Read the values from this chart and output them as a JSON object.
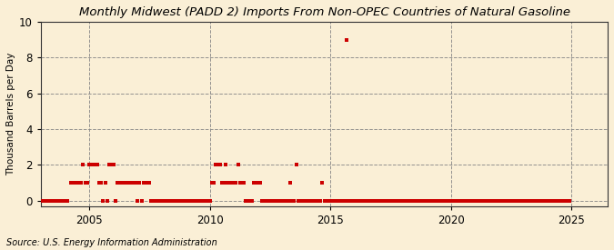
{
  "title": "Monthly Midwest (PADD 2) Imports From Non-OPEC Countries of Natural Gasoline",
  "ylabel": "Thousand Barrels per Day",
  "source": "Source: U.S. Energy Information Administration",
  "xlim": [
    2003.0,
    2026.5
  ],
  "ylim": [
    -0.3,
    10
  ],
  "yticks": [
    0,
    2,
    4,
    6,
    8,
    10
  ],
  "xticks": [
    2005,
    2010,
    2015,
    2020,
    2025
  ],
  "bg_color": "#faefd6",
  "marker_color": "#cc0000",
  "data": [
    [
      2003.0,
      0
    ],
    [
      2003.08,
      0
    ],
    [
      2003.17,
      0
    ],
    [
      2003.25,
      0
    ],
    [
      2003.33,
      0
    ],
    [
      2003.42,
      0
    ],
    [
      2003.5,
      0
    ],
    [
      2003.58,
      0
    ],
    [
      2003.67,
      0
    ],
    [
      2003.75,
      0
    ],
    [
      2003.83,
      0
    ],
    [
      2003.92,
      0
    ],
    [
      2004.0,
      0
    ],
    [
      2004.08,
      0
    ],
    [
      2004.25,
      1
    ],
    [
      2004.33,
      1
    ],
    [
      2004.42,
      1
    ],
    [
      2004.5,
      1
    ],
    [
      2004.58,
      1
    ],
    [
      2004.67,
      1
    ],
    [
      2004.75,
      2
    ],
    [
      2004.83,
      1
    ],
    [
      2004.92,
      1
    ],
    [
      2005.0,
      2
    ],
    [
      2005.08,
      2
    ],
    [
      2005.17,
      2
    ],
    [
      2005.25,
      2
    ],
    [
      2005.33,
      2
    ],
    [
      2005.42,
      1
    ],
    [
      2005.5,
      1
    ],
    [
      2005.58,
      0
    ],
    [
      2005.67,
      1
    ],
    [
      2005.75,
      0
    ],
    [
      2005.83,
      2
    ],
    [
      2005.92,
      2
    ],
    [
      2006.0,
      2
    ],
    [
      2006.08,
      0
    ],
    [
      2006.17,
      1
    ],
    [
      2006.25,
      1
    ],
    [
      2006.33,
      1
    ],
    [
      2006.42,
      1
    ],
    [
      2006.5,
      1
    ],
    [
      2006.58,
      1
    ],
    [
      2006.67,
      1
    ],
    [
      2006.75,
      1
    ],
    [
      2006.83,
      1
    ],
    [
      2006.92,
      1
    ],
    [
      2007.0,
      0
    ],
    [
      2007.08,
      1
    ],
    [
      2007.17,
      0
    ],
    [
      2007.25,
      1
    ],
    [
      2007.33,
      1
    ],
    [
      2007.42,
      1
    ],
    [
      2007.5,
      1
    ],
    [
      2007.58,
      0
    ],
    [
      2007.67,
      0
    ],
    [
      2007.75,
      0
    ],
    [
      2007.83,
      0
    ],
    [
      2007.92,
      0
    ],
    [
      2008.0,
      0
    ],
    [
      2008.08,
      0
    ],
    [
      2008.17,
      0
    ],
    [
      2008.25,
      0
    ],
    [
      2008.33,
      0
    ],
    [
      2008.42,
      0
    ],
    [
      2008.5,
      0
    ],
    [
      2008.58,
      0
    ],
    [
      2008.67,
      0
    ],
    [
      2008.75,
      0
    ],
    [
      2008.83,
      0
    ],
    [
      2008.92,
      0
    ],
    [
      2009.0,
      0
    ],
    [
      2009.08,
      0
    ],
    [
      2009.17,
      0
    ],
    [
      2009.25,
      0
    ],
    [
      2009.33,
      0
    ],
    [
      2009.42,
      0
    ],
    [
      2009.5,
      0
    ],
    [
      2009.58,
      0
    ],
    [
      2009.67,
      0
    ],
    [
      2009.75,
      0
    ],
    [
      2009.83,
      0
    ],
    [
      2009.92,
      0
    ],
    [
      2010.0,
      0
    ],
    [
      2010.08,
      1
    ],
    [
      2010.17,
      1
    ],
    [
      2010.25,
      2
    ],
    [
      2010.33,
      2
    ],
    [
      2010.42,
      2
    ],
    [
      2010.5,
      1
    ],
    [
      2010.58,
      1
    ],
    [
      2010.67,
      2
    ],
    [
      2010.75,
      1
    ],
    [
      2010.83,
      1
    ],
    [
      2010.92,
      1
    ],
    [
      2011.0,
      1
    ],
    [
      2011.08,
      1
    ],
    [
      2011.17,
      2
    ],
    [
      2011.25,
      1
    ],
    [
      2011.33,
      1
    ],
    [
      2011.42,
      1
    ],
    [
      2011.5,
      0
    ],
    [
      2011.58,
      0
    ],
    [
      2011.67,
      0
    ],
    [
      2011.75,
      0
    ],
    [
      2011.83,
      1
    ],
    [
      2011.92,
      1
    ],
    [
      2012.0,
      1
    ],
    [
      2012.08,
      1
    ],
    [
      2012.17,
      0
    ],
    [
      2012.25,
      0
    ],
    [
      2012.33,
      0
    ],
    [
      2012.42,
      0
    ],
    [
      2012.5,
      0
    ],
    [
      2012.58,
      0
    ],
    [
      2012.67,
      0
    ],
    [
      2012.75,
      0
    ],
    [
      2012.83,
      0
    ],
    [
      2012.92,
      0
    ],
    [
      2013.0,
      0
    ],
    [
      2013.08,
      0
    ],
    [
      2013.17,
      0
    ],
    [
      2013.25,
      0
    ],
    [
      2013.33,
      1
    ],
    [
      2013.42,
      0
    ],
    [
      2013.5,
      0
    ],
    [
      2013.58,
      2
    ],
    [
      2013.67,
      0
    ],
    [
      2013.75,
      0
    ],
    [
      2013.83,
      0
    ],
    [
      2013.92,
      0
    ],
    [
      2014.0,
      0
    ],
    [
      2014.08,
      0
    ],
    [
      2014.17,
      0
    ],
    [
      2014.25,
      0
    ],
    [
      2014.33,
      0
    ],
    [
      2014.42,
      0
    ],
    [
      2014.5,
      0
    ],
    [
      2014.58,
      0
    ],
    [
      2014.67,
      1
    ],
    [
      2014.75,
      0
    ],
    [
      2014.83,
      0
    ],
    [
      2014.92,
      0
    ],
    [
      2015.0,
      0
    ],
    [
      2015.08,
      0
    ],
    [
      2015.17,
      0
    ],
    [
      2015.25,
      0
    ],
    [
      2015.33,
      0
    ],
    [
      2015.42,
      0
    ],
    [
      2015.5,
      0
    ],
    [
      2015.58,
      0
    ],
    [
      2015.67,
      9
    ],
    [
      2015.75,
      0
    ],
    [
      2015.83,
      0
    ],
    [
      2015.92,
      0
    ],
    [
      2016.0,
      0
    ],
    [
      2016.08,
      0
    ],
    [
      2016.17,
      0
    ],
    [
      2016.25,
      0
    ],
    [
      2016.33,
      0
    ],
    [
      2016.42,
      0
    ],
    [
      2016.5,
      0
    ],
    [
      2016.58,
      0
    ],
    [
      2016.67,
      0
    ],
    [
      2016.75,
      0
    ],
    [
      2016.83,
      0
    ],
    [
      2016.92,
      0
    ],
    [
      2017.0,
      0
    ],
    [
      2017.08,
      0
    ],
    [
      2017.17,
      0
    ],
    [
      2017.25,
      0
    ],
    [
      2017.33,
      0
    ],
    [
      2017.42,
      0
    ],
    [
      2017.5,
      0
    ],
    [
      2017.58,
      0
    ],
    [
      2017.67,
      0
    ],
    [
      2017.75,
      0
    ],
    [
      2017.83,
      0
    ],
    [
      2017.92,
      0
    ],
    [
      2018.0,
      0
    ],
    [
      2018.08,
      0
    ],
    [
      2018.17,
      0
    ],
    [
      2018.25,
      0
    ],
    [
      2018.33,
      0
    ],
    [
      2018.42,
      0
    ],
    [
      2018.5,
      0
    ],
    [
      2018.58,
      0
    ],
    [
      2018.67,
      0
    ],
    [
      2018.75,
      0
    ],
    [
      2018.83,
      0
    ],
    [
      2018.92,
      0
    ],
    [
      2019.0,
      0
    ],
    [
      2019.08,
      0
    ],
    [
      2019.17,
      0
    ],
    [
      2019.25,
      0
    ],
    [
      2019.33,
      0
    ],
    [
      2019.42,
      0
    ],
    [
      2019.5,
      0
    ],
    [
      2019.58,
      0
    ],
    [
      2019.67,
      0
    ],
    [
      2019.75,
      0
    ],
    [
      2019.83,
      0
    ],
    [
      2019.92,
      0
    ],
    [
      2020.0,
      0
    ],
    [
      2020.08,
      0
    ],
    [
      2020.17,
      0
    ],
    [
      2020.25,
      0
    ],
    [
      2020.33,
      0
    ],
    [
      2020.42,
      0
    ],
    [
      2020.5,
      0
    ],
    [
      2020.58,
      0
    ],
    [
      2020.67,
      0
    ],
    [
      2020.75,
      0
    ],
    [
      2020.83,
      0
    ],
    [
      2020.92,
      0
    ],
    [
      2021.0,
      0
    ],
    [
      2021.08,
      0
    ],
    [
      2021.17,
      0
    ],
    [
      2021.25,
      0
    ],
    [
      2021.33,
      0
    ],
    [
      2021.42,
      0
    ],
    [
      2021.5,
      0
    ],
    [
      2021.58,
      0
    ],
    [
      2021.67,
      0
    ],
    [
      2021.75,
      0
    ],
    [
      2021.83,
      0
    ],
    [
      2021.92,
      0
    ],
    [
      2022.0,
      0
    ],
    [
      2022.08,
      0
    ],
    [
      2022.17,
      0
    ],
    [
      2022.25,
      0
    ],
    [
      2022.33,
      0
    ],
    [
      2022.42,
      0
    ],
    [
      2022.5,
      0
    ],
    [
      2022.58,
      0
    ],
    [
      2022.67,
      0
    ],
    [
      2022.75,
      0
    ],
    [
      2022.83,
      0
    ],
    [
      2022.92,
      0
    ],
    [
      2023.0,
      0
    ],
    [
      2023.08,
      0
    ],
    [
      2023.17,
      0
    ],
    [
      2023.25,
      0
    ],
    [
      2023.33,
      0
    ],
    [
      2023.42,
      0
    ],
    [
      2023.5,
      0
    ],
    [
      2023.58,
      0
    ],
    [
      2023.67,
      0
    ],
    [
      2023.75,
      0
    ],
    [
      2023.83,
      0
    ],
    [
      2023.92,
      0
    ],
    [
      2024.0,
      0
    ],
    [
      2024.08,
      0
    ],
    [
      2024.17,
      0
    ],
    [
      2024.25,
      0
    ],
    [
      2024.33,
      0
    ],
    [
      2024.42,
      0
    ],
    [
      2024.5,
      0
    ],
    [
      2024.58,
      0
    ],
    [
      2024.67,
      0
    ],
    [
      2024.75,
      0
    ],
    [
      2024.83,
      0
    ],
    [
      2024.92,
      0
    ]
  ]
}
